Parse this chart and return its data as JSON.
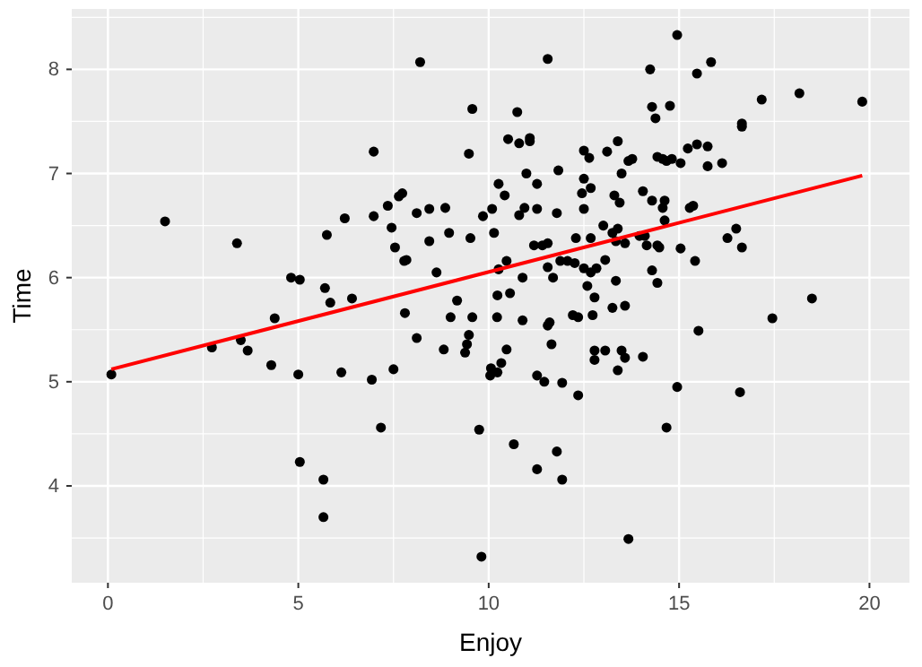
{
  "chart_data": {
    "type": "scatter",
    "xlabel": "Enjoy",
    "ylabel": "Time",
    "xlim": [
      -0.95,
      21.05
    ],
    "ylim": [
      3.07,
      8.58
    ],
    "xticks": [
      0,
      5,
      10,
      15,
      20
    ],
    "yticks": [
      4,
      5,
      6,
      7,
      8
    ],
    "grid": true,
    "series": [
      {
        "marker": "circle",
        "color": "#000000",
        "x": [
          0.09,
          2.73,
          3.49,
          3.67,
          4.38,
          4.29,
          5.0,
          5.7,
          5.84,
          6.41,
          6.13,
          6.93,
          7.5,
          7.17,
          5.04,
          5.66,
          5.66,
          7.8,
          8.11,
          8.82,
          9.0,
          9.17,
          9.57,
          9.48,
          9.43,
          9.38,
          9.75,
          9.81,
          10.06,
          10.04,
          10.23,
          10.22,
          1.5,
          3.39,
          4.81,
          5.04,
          5.75,
          6.22,
          6.98,
          6.98,
          7.35,
          7.45,
          7.54,
          7.64,
          7.73,
          7.78,
          7.84,
          8.11,
          8.2,
          8.44,
          8.44,
          8.63,
          8.86,
          8.96,
          9.48,
          9.52,
          9.57,
          9.85,
          10.09,
          10.14,
          10.26,
          10.26,
          10.42,
          10.51,
          10.75,
          10.8,
          11.08,
          11.08,
          10.99,
          11.27,
          11.27,
          10.8,
          10.94,
          11.55,
          11.83,
          11.79,
          11.19,
          11.41,
          11.55,
          10.47,
          10.89,
          11.55,
          11.69,
          11.88,
          12.07,
          12.26,
          12.29,
          12.5,
          12.64,
          12.5,
          12.68,
          12.45,
          12.5,
          12.68,
          12.5,
          12.68,
          12.83,
          12.59,
          12.78,
          13.06,
          13.11,
          13.01,
          13.3,
          13.44,
          13.25,
          13.39,
          13.34,
          13.58,
          13.34,
          13.39,
          13.49,
          13.67,
          13.77,
          14.05,
          13.96,
          14.1,
          14.15,
          14.29,
          14.24,
          14.29,
          14.38,
          14.43,
          14.57,
          14.67,
          14.81,
          14.76,
          14.95,
          15.04,
          14.62,
          14.57,
          14.62,
          14.43,
          14.48,
          14.29,
          14.43,
          15.04,
          15.23,
          15.47,
          15.75,
          15.75,
          15.47,
          15.84,
          15.28,
          15.37,
          15.42,
          16.13,
          16.27,
          16.5,
          16.65,
          16.65,
          16.65,
          17.17,
          18.16,
          19.81,
          18.49,
          10.56,
          10.89,
          11.55,
          11.6,
          12.21,
          12.35,
          12.73,
          13.25,
          13.58,
          10.47,
          11.65,
          10.33,
          10.23,
          11.27,
          11.46,
          11.93,
          12.35,
          12.78,
          12.78,
          13.06,
          13.49,
          13.58,
          13.39,
          14.05,
          15.51,
          14.95,
          14.67,
          16.6,
          17.45,
          10.66,
          11.79,
          11.27,
          11.93,
          13.67
        ],
        "values": [
          5.07,
          5.33,
          5.4,
          5.3,
          5.61,
          5.16,
          5.07,
          5.9,
          5.76,
          5.8,
          5.09,
          5.02,
          5.12,
          4.56,
          4.23,
          4.06,
          3.7,
          5.66,
          5.42,
          5.31,
          5.62,
          5.78,
          5.62,
          5.45,
          5.36,
          5.28,
          4.54,
          3.32,
          5.13,
          5.06,
          5.83,
          5.62,
          6.54,
          6.33,
          6.0,
          5.98,
          6.41,
          6.57,
          7.21,
          6.59,
          6.69,
          6.48,
          6.29,
          6.78,
          6.81,
          6.16,
          6.17,
          6.62,
          8.07,
          6.66,
          6.35,
          6.05,
          6.67,
          6.43,
          7.19,
          6.38,
          7.62,
          6.59,
          6.66,
          6.43,
          6.9,
          6.08,
          6.79,
          7.33,
          7.59,
          7.29,
          7.34,
          7.31,
          7.0,
          6.9,
          6.66,
          6.6,
          6.67,
          8.1,
          7.03,
          6.62,
          6.31,
          6.31,
          6.33,
          6.16,
          6.0,
          6.1,
          6.0,
          6.16,
          6.16,
          6.14,
          6.38,
          7.22,
          7.15,
          6.95,
          6.86,
          6.81,
          6.66,
          6.38,
          6.09,
          6.05,
          6.09,
          5.92,
          5.81,
          6.17,
          7.21,
          6.5,
          6.79,
          6.72,
          6.43,
          6.47,
          6.35,
          6.33,
          5.97,
          7.31,
          7.0,
          7.12,
          7.14,
          6.83,
          6.4,
          6.4,
          6.31,
          6.74,
          8.0,
          7.64,
          7.53,
          7.16,
          7.14,
          7.12,
          7.14,
          7.65,
          8.33,
          7.1,
          6.74,
          6.67,
          6.55,
          6.31,
          6.29,
          6.07,
          5.95,
          6.28,
          7.24,
          7.28,
          7.26,
          7.07,
          7.96,
          8.07,
          6.67,
          6.69,
          6.16,
          7.1,
          6.38,
          6.47,
          7.48,
          7.45,
          6.29,
          7.71,
          7.77,
          7.69,
          5.8,
          5.85,
          5.59,
          5.54,
          5.57,
          5.64,
          5.62,
          5.64,
          5.71,
          5.73,
          5.31,
          5.36,
          5.18,
          5.09,
          5.06,
          5.0,
          4.99,
          4.87,
          5.3,
          5.21,
          5.3,
          5.3,
          5.23,
          5.11,
          5.24,
          5.49,
          4.95,
          4.56,
          4.9,
          5.61,
          4.4,
          4.33,
          4.16,
          4.06,
          3.49
        ]
      },
      {
        "type": "line",
        "color": "#ff0000",
        "x": [
          0.09,
          19.81
        ],
        "values": [
          5.12,
          6.98
        ]
      }
    ]
  }
}
